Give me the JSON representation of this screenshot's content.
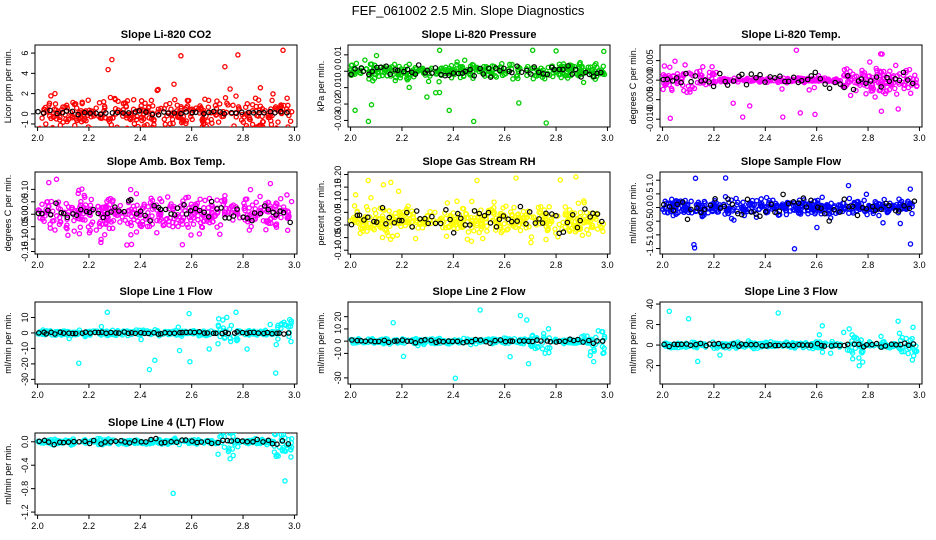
{
  "page_title": "FEF_061002  2.5 Min. Slope Diagnostics",
  "x_ticks": [
    2.0,
    2.2,
    2.4,
    2.6,
    2.8,
    3.0
  ],
  "x_tick_labels": [
    "2.0",
    "2.2",
    "2.4",
    "2.6",
    "2.8",
    "3.0"
  ],
  "xlim": [
    1.99,
    3.01
  ],
  "chart_data": [
    {
      "id": "co2",
      "type": "scatter",
      "title": "Slope Li-820 CO2",
      "ylabel": "Licor ppm per min.",
      "ylim": [
        -1.3,
        6.8
      ],
      "yticks": [
        -1,
        0,
        2,
        4,
        6
      ],
      "ytick_labels": [
        "-1",
        "0",
        "2",
        "4",
        "6"
      ],
      "color": "#ff0000",
      "bg_center": 0,
      "bg_spread": 1.2,
      "out_frac": 0.06,
      "out_lo": -1.2,
      "out_hi": 6.5,
      "n": 360,
      "ref_center": 0.1,
      "ref_spread": 0.15,
      "ref_n": 45
    },
    {
      "id": "pressure",
      "type": "scatter",
      "title": "Slope Li-820 Pressure",
      "ylabel": "kPa per min.",
      "ylim": [
        -0.034,
        0.016
      ],
      "yticks": [
        -0.03,
        -0.02,
        -0.01,
        0.0,
        0.01
      ],
      "ytick_labels": [
        "-0.03",
        "-0.02",
        "-0.01",
        "0.0",
        "0.01"
      ],
      "color": "#00cc00",
      "bg_center": 0.0,
      "bg_spread": 0.0035,
      "out_frac": 0.08,
      "out_lo": -0.032,
      "out_hi": 0.014,
      "n": 340,
      "ref_center": 0.0,
      "ref_spread": 0.0025,
      "ref_n": 60
    },
    {
      "id": "temp",
      "type": "scatter",
      "title": "Slope Li-820 Temp.",
      "ylabel": "degrees C per min.",
      "ylim": [
        -0.012,
        0.009
      ],
      "yticks": [
        -0.01,
        -0.005,
        0.0,
        0.005
      ],
      "ytick_labels": [
        "-0.010",
        "-0.005",
        "0.000",
        "0.005"
      ],
      "color": "#ff00ff",
      "bg_center": 0.0,
      "bg_spread": 0.0025,
      "out_frac": 0.05,
      "out_lo": -0.011,
      "out_hi": 0.008,
      "n": 380,
      "ref_center": 0.0,
      "ref_spread": 0.0015,
      "ref_n": 55
    },
    {
      "id": "boxtemp",
      "type": "scatter",
      "title": "Slope Amb. Box Temp.",
      "ylabel": "degrees C per min.",
      "ylim": [
        -0.16,
        0.17
      ],
      "yticks": [
        -0.15,
        -0.1,
        -0.05,
        0.0,
        0.05,
        0.1
      ],
      "ytick_labels": [
        "-0.15",
        "-0.10",
        "-0.05",
        "0.00",
        "0.05",
        "0.10"
      ],
      "color": "#ff00ff",
      "bg_center": 0.0,
      "bg_spread": 0.05,
      "out_frac": 0.05,
      "out_lo": -0.15,
      "out_hi": 0.15,
      "n": 420,
      "ref_center": 0.01,
      "ref_spread": 0.03,
      "ref_n": 60
    },
    {
      "id": "rh",
      "type": "scatter",
      "title": "Slope Gas Stream RH",
      "ylabel": "percent per min.",
      "ylim": [
        -0.115,
        0.21
      ],
      "yticks": [
        -0.1,
        -0.05,
        0.0,
        0.05,
        0.1,
        0.15,
        0.2
      ],
      "ytick_labels": [
        "-0.10",
        "-0.05",
        "0.00",
        "0.05",
        "0.10",
        "0.15",
        "0.20"
      ],
      "color": "#ffff00",
      "bg_center": 0.02,
      "bg_spread": 0.04,
      "out_frac": 0.05,
      "out_lo": -0.11,
      "out_hi": 0.2,
      "n": 420,
      "ref_center": 0.02,
      "ref_spread": 0.035,
      "ref_n": 60
    },
    {
      "id": "sample",
      "type": "scatter",
      "title": "Slope Sample Flow",
      "ylabel": "ml/min per min.",
      "ylim": [
        -1.7,
        1.3
      ],
      "yticks": [
        -1.5,
        -1.0,
        -0.5,
        0.0,
        0.5,
        1.0
      ],
      "ytick_labels": [
        "-1.5",
        "-1.0",
        "-0.5",
        "0.0",
        "0.5",
        "1.0"
      ],
      "color": "#0000ff",
      "bg_center": 0.0,
      "bg_spread": 0.2,
      "out_frac": 0.06,
      "out_lo": -1.6,
      "out_hi": 1.2,
      "n": 420,
      "ref_center": 0.0,
      "ref_spread": 0.3,
      "ref_n": 55
    },
    {
      "id": "line1",
      "type": "scatter",
      "title": "Slope Line 1 Flow",
      "ylabel": "ml/min per min.",
      "ylim": [
        -33,
        20
      ],
      "yticks": [
        -30,
        -20,
        -10,
        0,
        10
      ],
      "ytick_labels": [
        "-30",
        "-20",
        "-10",
        "0",
        "10"
      ],
      "color": "#00ffff",
      "bg_center": 0,
      "bg_spread": 1.2,
      "out_frac": 0.04,
      "out_lo": -30,
      "out_hi": 18,
      "n": 360,
      "ref_center": 0,
      "ref_spread": 0.5,
      "ref_n": 60
    },
    {
      "id": "line2",
      "type": "scatter",
      "title": "Slope Line 2 Flow",
      "ylabel": "ml/min per min.",
      "ylim": [
        -35,
        32
      ],
      "yticks": [
        -30,
        -10,
        0,
        10,
        20
      ],
      "ytick_labels": [
        "-30",
        "-10",
        "0",
        "10",
        "20"
      ],
      "color": "#00ffff",
      "bg_center": 0,
      "bg_spread": 1.5,
      "out_frac": 0.04,
      "out_lo": -33,
      "out_hi": 30,
      "n": 360,
      "ref_center": 0,
      "ref_spread": 1.0,
      "ref_n": 55
    },
    {
      "id": "line3",
      "type": "scatter",
      "title": "Slope Line 3 Flow",
      "ylabel": "ml/min per min.",
      "ylim": [
        -38,
        42
      ],
      "yticks": [
        -20,
        0,
        20,
        40
      ],
      "ytick_labels": [
        "-20",
        "0",
        "20",
        "40"
      ],
      "color": "#00ffff",
      "bg_center": 0,
      "bg_spread": 2.0,
      "out_frac": 0.04,
      "out_lo": -35,
      "out_hi": 38,
      "n": 360,
      "ref_center": 0,
      "ref_spread": 1.2,
      "ref_n": 55
    },
    {
      "id": "line4",
      "type": "scatter",
      "title": "Slope Line 4 (LT) Flow",
      "ylabel": "ml/min per min.",
      "ylim": [
        -1.25,
        0.15
      ],
      "yticks": [
        -1.2,
        -0.8,
        -0.4,
        0.0
      ],
      "ytick_labels": [
        "-1.2",
        "-0.8",
        "-0.4",
        "0.0"
      ],
      "color": "#00ffff",
      "bg_center": 0,
      "bg_spread": 0.03,
      "out_frac": 0.01,
      "out_lo": -1.2,
      "out_hi": 0.1,
      "n": 380,
      "ref_center": 0,
      "ref_spread": 0.03,
      "ref_n": 50
    }
  ]
}
